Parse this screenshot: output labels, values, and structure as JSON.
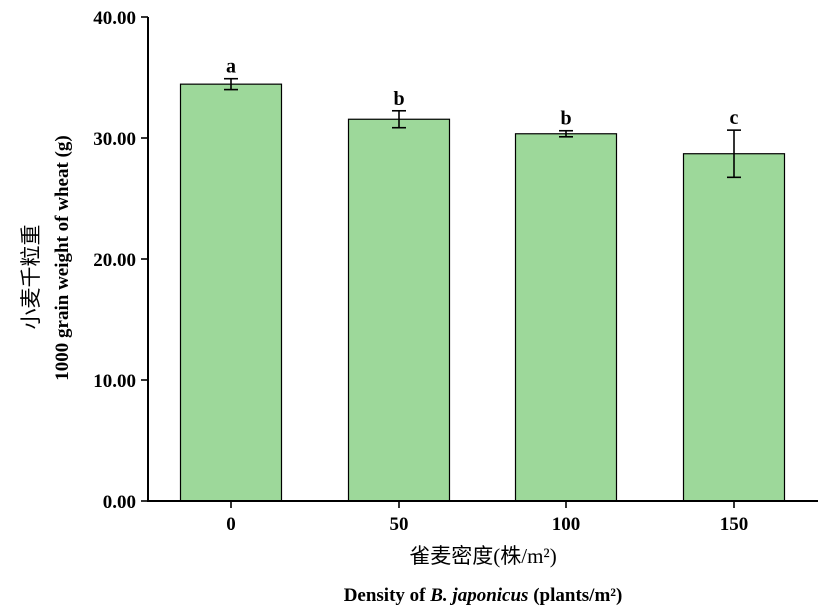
{
  "chart_data": {
    "type": "bar",
    "categories": [
      "0",
      "50",
      "100",
      "150"
    ],
    "values": [
      34.45,
      31.55,
      30.35,
      28.7
    ],
    "errors": [
      0.45,
      0.7,
      0.25,
      1.95
    ],
    "significance": [
      "a",
      "b",
      "b",
      "c"
    ],
    "ylim": [
      0,
      40
    ],
    "yticks": [
      "0.00",
      "10.00",
      "20.00",
      "30.00",
      "40.00"
    ],
    "ytick_values": [
      0,
      10,
      20,
      30,
      40
    ],
    "ylabel_cn": "小麦千粒重",
    "ylabel_en": "1000 grain weight of wheat (g)",
    "xlabel_cn": "雀麦密度(株/m²)",
    "xlabel_en_prefix": "Density of ",
    "xlabel_en_italic": "B. japonicus",
    "xlabel_en_suffix": " (plants/m²)",
    "bar_color": "#9dd89a",
    "grid": false
  }
}
